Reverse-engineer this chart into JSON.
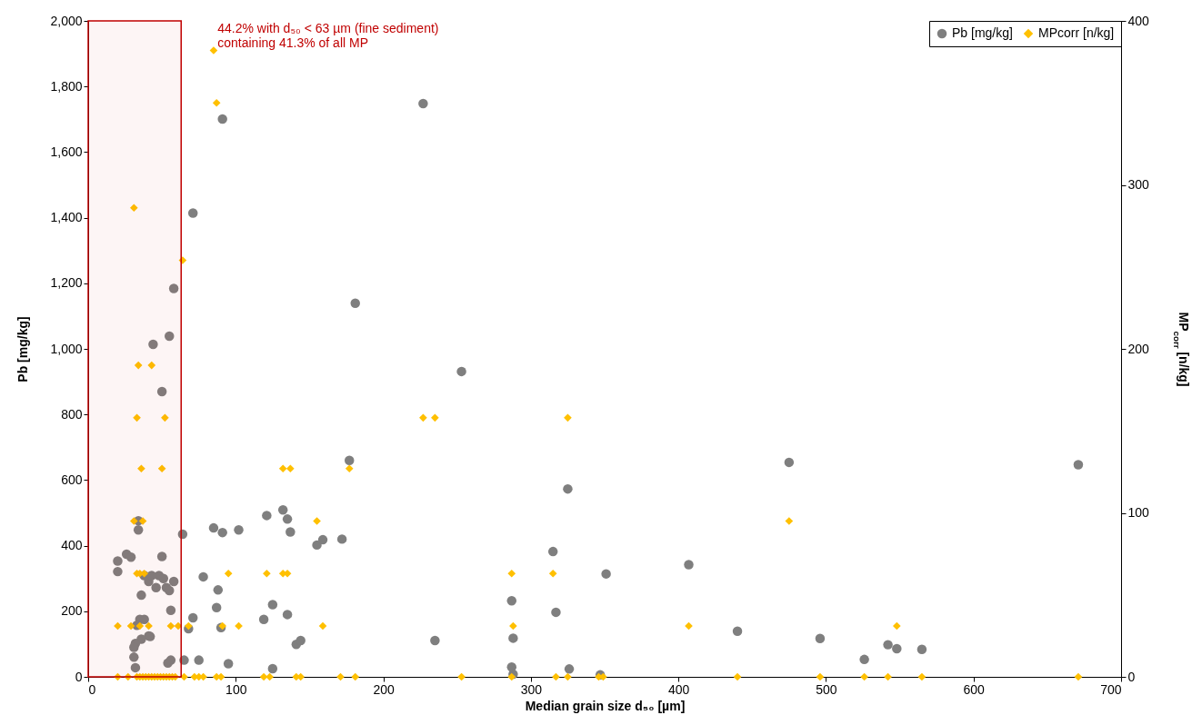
{
  "chart_data": {
    "type": "scatter",
    "xlabel": "Median grain size d₅₀ [µm]",
    "ylabel": "Pb [mg/kg]",
    "y2label": "MP$_{corr}$ [n/kg]",
    "xlim": [
      0,
      700
    ],
    "xticks": [
      0,
      100,
      200,
      300,
      400,
      500,
      600,
      700
    ],
    "ylim": [
      0,
      2000
    ],
    "yticks": [
      0,
      200,
      400,
      600,
      800,
      {
        "value": 1000,
        "label": "1,000"
      },
      {
        "value": 1200,
        "label": "1,200"
      },
      {
        "value": 1400,
        "label": "1,400"
      },
      {
        "value": 1600,
        "label": "1,600"
      },
      {
        "value": 1800,
        "label": "1,800"
      },
      {
        "value": 2000,
        "label": "2,000"
      }
    ],
    "y2lim": [
      0,
      400
    ],
    "y2ticks": [
      0,
      100,
      200,
      300,
      400
    ],
    "grid": false,
    "legend": "top right",
    "bands": [
      {
        "axis": "x",
        "from": 0,
        "to": 63,
        "label": "44.2% with d₅₀ < 63 µm (fine sediment)\ncontaining 41.3% of all MP",
        "color": "#c00000"
      }
    ],
    "series": [
      {
        "name": "Pb [mg/kg]",
        "color": "#7f7f7f",
        "marker": "circle",
        "x": [
          58,
          55,
          44,
          50,
          34,
          34,
          20,
          20,
          26,
          29,
          50,
          64,
          85,
          91,
          102,
          78,
          88,
          87,
          71,
          68,
          90,
          95,
          75,
          65,
          54,
          56,
          56,
          58,
          36,
          38,
          41,
          43,
          46,
          48,
          51,
          53,
          55,
          35,
          38,
          33,
          41,
          36,
          32,
          31,
          31,
          32,
          42,
          71,
          91,
          227,
          181,
          253,
          177,
          325,
          132,
          135,
          137,
          155,
          159,
          172,
          315,
          351,
          287,
          317,
          125,
          135,
          141,
          144,
          235,
          288,
          287,
          288,
          326,
          347,
          125,
          119,
          121,
          475,
          671,
          407,
          440,
          496,
          526,
          542,
          548,
          565
        ],
        "values": [
          1184,
          1039,
          1014,
          870,
          448,
          476,
          353,
          321,
          374,
          365,
          367,
          435,
          454,
          440,
          448,
          305,
          265,
          211,
          180,
          147,
          150,
          40,
          51,
          51,
          42,
          51,
          203,
          291,
          249,
          309,
          291,
          309,
          272,
          309,
          300,
          272,
          263,
          175,
          175,
          157,
          125,
          115,
          102,
          90,
          60,
          28,
          123,
          1414,
          1701,
          1748,
          1139,
          931,
          660,
          573,
          509,
          481,
          442,
          402,
          418,
          420,
          382,
          314,
          232,
          197,
          220,
          190,
          99,
          111,
          111,
          118,
          30,
          8,
          24,
          6,
          25,
          175,
          492,
          654,
          647,
          342,
          139,
          117,
          53,
          98,
          86,
          84
        ]
      },
      {
        "name": "MPcorr [n/kg]",
        "color": "#ffc000",
        "marker": "diamond",
        "axis": "y2",
        "x": [
          85,
          87,
          31,
          64,
          34,
          43,
          33,
          52,
          36,
          50,
          31,
          37,
          33,
          35,
          38,
          95,
          121,
          132,
          135,
          132,
          137,
          177,
          287,
          315,
          155,
          475,
          227,
          235,
          325,
          159,
          288,
          407,
          548,
          20,
          29,
          35,
          41,
          56,
          61,
          68,
          91,
          102,
          20,
          27,
          33,
          35,
          37,
          39,
          41,
          43,
          45,
          47,
          49,
          51,
          53,
          55,
          57,
          59,
          65,
          72,
          75,
          78,
          87,
          90,
          119,
          123,
          141,
          144,
          171,
          181,
          253,
          287,
          317,
          325,
          346,
          349,
          440,
          496,
          526,
          542,
          565,
          671
        ],
        "values": [
          382,
          350,
          286,
          254,
          190,
          190,
          158,
          158,
          127,
          127,
          95,
          95,
          63,
          63,
          63,
          63,
          63,
          63,
          63,
          127,
          127,
          127,
          63,
          63,
          95,
          95,
          158,
          158,
          158,
          31,
          31,
          31,
          31,
          31,
          31,
          31,
          31,
          31,
          31,
          31,
          31,
          31,
          0,
          0,
          0,
          0,
          0,
          0,
          0,
          0,
          0,
          0,
          0,
          0,
          0,
          0,
          0,
          0,
          0,
          0,
          0,
          0,
          0,
          0,
          0,
          0,
          0,
          0,
          0,
          0,
          0,
          0,
          0,
          0,
          0,
          0,
          0,
          0,
          0,
          0,
          0,
          0
        ]
      }
    ]
  }
}
